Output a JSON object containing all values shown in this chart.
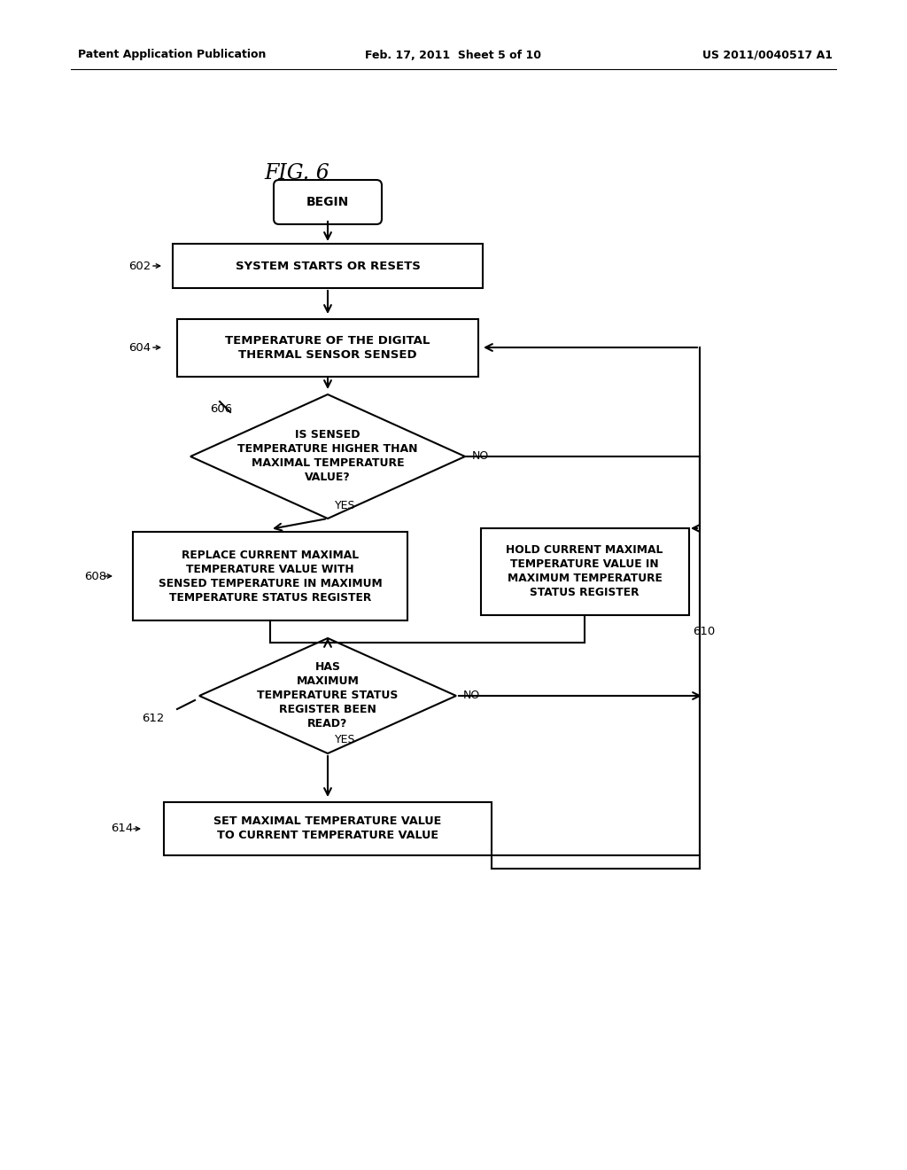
{
  "bg_color": "#ffffff",
  "line_color": "#000000",
  "text_color": "#000000",
  "header_left": "Patent Application Publication",
  "header_center": "Feb. 17, 2011  Sheet 5 of 10",
  "header_right": "US 2011/0040517 A1",
  "fig_title": "FIG. 6"
}
